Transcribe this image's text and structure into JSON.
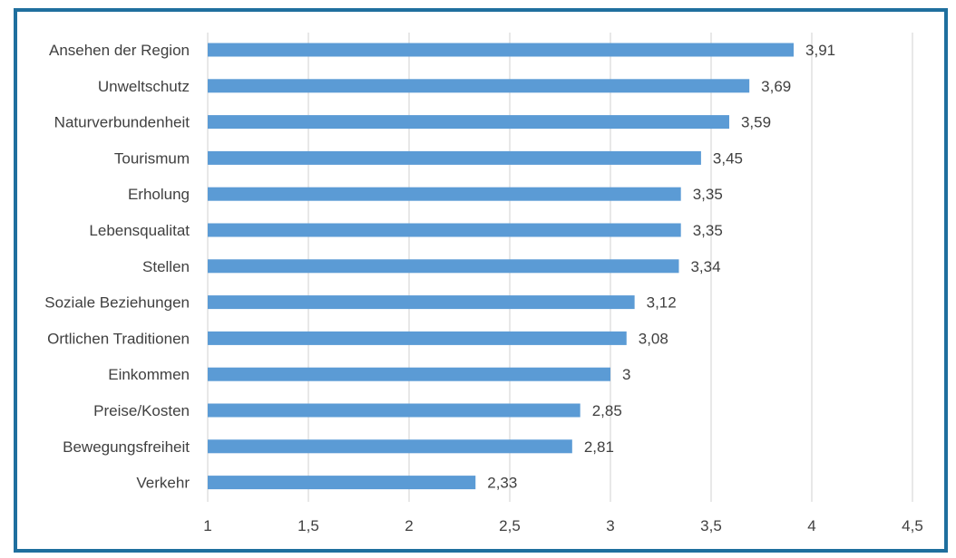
{
  "chart_data": {
    "type": "bar",
    "orientation": "horizontal",
    "title": "",
    "xlabel": "",
    "ylabel": "",
    "categories": [
      "Ansehen der Region",
      "Unweltschutz",
      "Naturverbundenheit",
      "Tourismum",
      "Erholung",
      "Lebensqualitat",
      "Stellen",
      "Soziale Beziehungen",
      "Ortlichen Traditionen",
      "Einkommen",
      "Preise/Kosten",
      "Bewegungsfreiheit",
      "Verkehr"
    ],
    "values": [
      3.91,
      3.69,
      3.59,
      3.45,
      3.35,
      3.35,
      3.34,
      3.12,
      3.08,
      3,
      2.85,
      2.81,
      2.33
    ],
    "data_labels": [
      "3,91",
      "3,69",
      "3,59",
      "3,45",
      "3,35",
      "3,35",
      "3,34",
      "3,12",
      "3,08",
      "3",
      "2,85",
      "2,81",
      "2,33"
    ],
    "xlim": [
      1,
      4.5
    ],
    "ticks": [
      1,
      1.5,
      2,
      2.5,
      3,
      3.5,
      4,
      4.5
    ],
    "tick_labels": [
      "1",
      "1,5",
      "2",
      "2,5",
      "3",
      "3,5",
      "4",
      "4,5"
    ],
    "grid": true,
    "legend": "none",
    "colors": {
      "bar": "#5b9bd5",
      "grid": "#d9d9d9",
      "border": "#1f6f9e",
      "text": "#404040"
    }
  }
}
